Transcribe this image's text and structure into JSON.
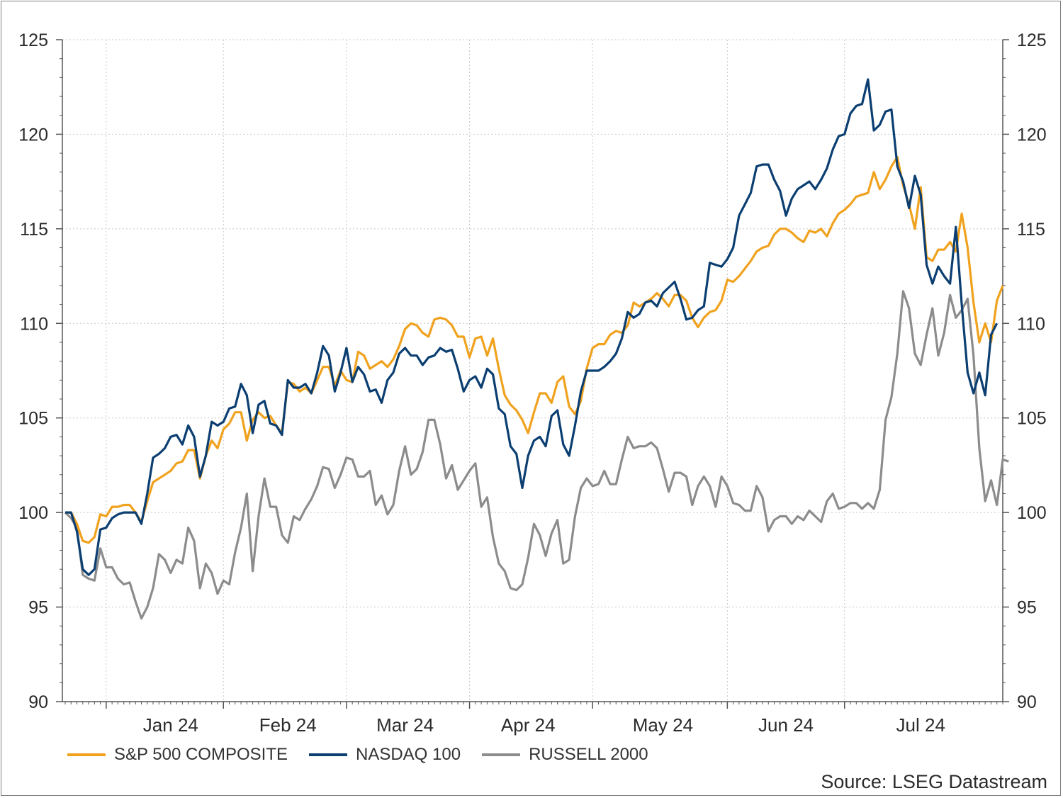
{
  "chart_data": {
    "type": "line",
    "source": "Source: LSEG Datastream",
    "ylim": [
      90,
      125
    ],
    "yticks": [
      "90",
      "95",
      "100",
      "105",
      "110",
      "115",
      "120",
      "125"
    ],
    "months": [
      "Jan 24",
      "Feb 24",
      "Mar 24",
      "Apr 24",
      "May 24",
      "Jun 24",
      "Jul 24"
    ],
    "grid": true,
    "legend_position": "bottom-left",
    "colors": {
      "sp500": "#f0a21e",
      "nasdaq": "#0b3e71",
      "russell": "#8c8c8c"
    },
    "series": [
      {
        "name": "S&P 500 COMPOSITE",
        "color": "#f0a21e",
        "values": [
          100,
          100,
          99.4,
          98.5,
          98.4,
          98.7,
          99.9,
          99.8,
          100.3,
          100.3,
          100.4,
          100.4,
          100.0,
          99.5,
          100.6,
          101.6,
          101.8,
          102.0,
          102.2,
          102.6,
          102.7,
          103.3,
          103.3,
          101.8,
          103.0,
          103.8,
          103.4,
          104.4,
          104.7,
          105.3,
          105.3,
          103.8,
          104.9,
          105.3,
          105.0,
          105.1,
          104.6,
          104.2,
          106.9,
          106.8,
          106.4,
          106.6,
          106.3,
          107.0,
          107.7,
          107.7,
          106.7,
          107.5,
          107.0,
          106.9,
          108.5,
          108.3,
          107.6,
          107.8,
          108.0,
          107.7,
          108.1,
          108.8,
          109.7,
          110.0,
          109.9,
          109.5,
          109.3,
          110.2,
          110.3,
          110.2,
          109.9,
          109.3,
          109.3,
          108.2,
          109.2,
          109.3,
          108.3,
          109.2,
          107.6,
          106.2,
          105.7,
          105.4,
          104.9,
          104.2,
          105.3,
          106.3,
          106.3,
          105.8,
          106.9,
          107.2,
          105.6,
          105.2,
          105.9,
          107.6,
          108.7,
          108.9,
          108.9,
          109.4,
          109.6,
          109.5,
          109.9,
          111.1,
          110.9,
          111.1,
          111.3,
          111.6,
          111.3,
          110.9,
          111.5,
          111.5,
          111.2,
          110.3,
          109.8,
          110.3,
          110.6,
          110.7,
          111.2,
          112.3,
          112.2,
          112.5,
          112.9,
          113.3,
          113.8,
          114.0,
          114.1,
          114.7,
          115.0,
          115.0,
          114.8,
          114.5,
          114.3,
          114.9,
          114.8,
          115.0,
          114.6,
          115.3,
          115.8,
          116.0,
          116.3,
          116.7,
          116.8,
          116.9,
          118.0,
          117.1,
          117.6,
          118.3,
          118.8,
          117.3,
          116.3,
          115.0,
          117.2,
          113.5,
          113.3,
          113.9,
          113.9,
          114.3,
          113.8,
          115.8,
          114.0,
          111.1,
          109.0,
          110.0,
          109.0,
          111.2,
          112.0
        ]
      },
      {
        "name": "NASDAQ 100",
        "color": "#0b3e71",
        "values": [
          100,
          100,
          99.0,
          97.0,
          96.7,
          97.0,
          99.1,
          99.2,
          99.7,
          99.9,
          100.0,
          100.0,
          100.0,
          99.4,
          101.0,
          102.9,
          103.1,
          103.4,
          104.0,
          104.1,
          103.6,
          104.6,
          104.0,
          101.9,
          103.0,
          104.8,
          104.6,
          104.8,
          105.5,
          105.6,
          106.8,
          106.2,
          104.2,
          105.7,
          105.9,
          104.7,
          104.6,
          104.1,
          107.0,
          106.6,
          106.6,
          106.8,
          106.3,
          107.4,
          108.8,
          108.3,
          106.4,
          107.4,
          108.7,
          106.9,
          107.7,
          107.3,
          106.4,
          106.5,
          105.8,
          107.0,
          107.4,
          108.4,
          108.7,
          108.3,
          108.3,
          107.8,
          108.2,
          108.3,
          108.7,
          108.5,
          108.6,
          107.6,
          106.4,
          107.0,
          107.2,
          106.6,
          107.6,
          107.3,
          105.5,
          105.2,
          103.5,
          103.1,
          101.3,
          103.0,
          103.8,
          104.0,
          103.5,
          105.1,
          105.4,
          103.6,
          103.0,
          104.6,
          106.4,
          107.5,
          107.5,
          107.5,
          107.7,
          108.0,
          108.4,
          109.2,
          110.6,
          110.3,
          110.5,
          111.1,
          111.2,
          110.9,
          111.6,
          111.9,
          112.2,
          111.3,
          110.2,
          110.3,
          110.7,
          110.9,
          113.2,
          113.1,
          113.0,
          113.4,
          114.0,
          115.7,
          116.3,
          116.9,
          118.3,
          118.4,
          118.4,
          117.6,
          117.0,
          115.7,
          116.6,
          117.1,
          117.3,
          117.5,
          117.1,
          117.6,
          118.2,
          119.2,
          119.9,
          120.0,
          121.1,
          121.5,
          121.6,
          122.9,
          120.2,
          120.5,
          121.2,
          121.3,
          118.3,
          117.5,
          116.1,
          117.8,
          116.8,
          113.1,
          112.1,
          113.0,
          112.5,
          112.1,
          115.1,
          111.0,
          107.4,
          106.3,
          107.4,
          106.2,
          109.4,
          110.0
        ]
      },
      {
        "name": "RUSSELL 2000",
        "color": "#8c8c8c",
        "values": [
          100,
          99.7,
          99.2,
          96.7,
          96.5,
          96.4,
          98.1,
          97.1,
          97.1,
          96.5,
          96.2,
          96.3,
          95.3,
          94.4,
          95.0,
          96.0,
          97.8,
          97.5,
          96.8,
          97.5,
          97.3,
          99.2,
          98.5,
          96.0,
          97.3,
          96.8,
          95.7,
          96.4,
          96.2,
          97.9,
          99.2,
          101.0,
          96.9,
          99.8,
          101.8,
          100.3,
          100.3,
          98.8,
          98.4,
          99.8,
          99.6,
          100.2,
          100.7,
          101.4,
          102.4,
          102.3,
          101.3,
          102.0,
          102.9,
          102.8,
          101.9,
          101.9,
          102.2,
          100.4,
          100.9,
          99.9,
          100.4,
          102.2,
          103.5,
          102.0,
          102.3,
          103.2,
          104.9,
          104.9,
          103.6,
          101.8,
          102.5,
          101.2,
          101.7,
          102.2,
          102.6,
          100.3,
          100.8,
          98.7,
          97.3,
          96.9,
          96.0,
          95.9,
          96.2,
          97.6,
          99.4,
          98.8,
          97.7,
          98.9,
          99.6,
          97.3,
          97.5,
          99.8,
          101.3,
          101.8,
          101.4,
          101.5,
          102.2,
          101.5,
          101.5,
          102.8,
          104.0,
          103.4,
          103.5,
          103.5,
          103.7,
          103.4,
          102.3,
          101.1,
          102.1,
          102.1,
          101.9,
          100.4,
          101.4,
          101.9,
          101.4,
          100.3,
          101.9,
          101.4,
          100.5,
          100.4,
          100.1,
          100.1,
          101.4,
          100.8,
          99.0,
          99.6,
          99.8,
          99.8,
          99.4,
          99.8,
          99.6,
          100.1,
          99.8,
          99.5,
          100.6,
          101.0,
          100.2,
          100.3,
          100.5,
          100.5,
          100.2,
          100.5,
          100.2,
          101.2,
          104.9,
          106.1,
          108.4,
          111.7,
          110.8,
          108.4,
          107.8,
          109.4,
          110.8,
          108.3,
          109.5,
          111.5,
          110.3,
          110.7,
          111.3,
          108.3,
          103.4,
          100.6,
          101.7,
          100.4,
          102.8,
          102.7
        ]
      }
    ]
  }
}
